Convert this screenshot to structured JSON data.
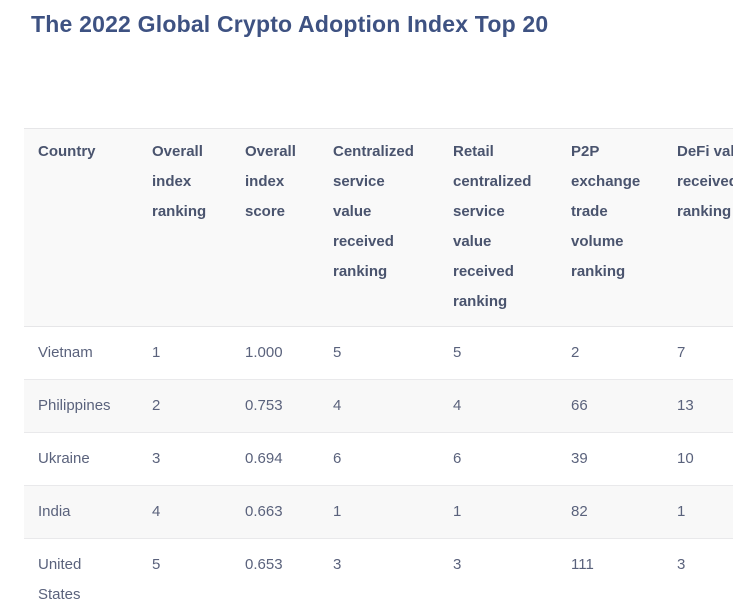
{
  "chart_data": {
    "type": "table",
    "title": "The 2022 Global Crypto Adoption Index Top 20",
    "columns": [
      "Country",
      "Overall index ranking",
      "Overall index score",
      "Centralized service value received ranking",
      "Retail centralized service value received ranking",
      "P2P exchange trade volume ranking",
      "DeFi value received ranking"
    ],
    "rows": [
      {
        "cells": [
          "Vietnam",
          "1",
          "1.000",
          "5",
          "5",
          "2",
          "7"
        ]
      },
      {
        "cells": [
          "Philippines",
          "2",
          "0.753",
          "4",
          "4",
          "66",
          "13"
        ]
      },
      {
        "cells": [
          "Ukraine",
          "3",
          "0.694",
          "6",
          "6",
          "39",
          "10"
        ]
      },
      {
        "cells": [
          "India",
          "4",
          "0.663",
          "1",
          "1",
          "82",
          "1"
        ]
      },
      {
        "cells": [
          "United States",
          "5",
          "0.653",
          "3",
          "3",
          "111",
          "3"
        ]
      }
    ],
    "layout": {
      "zebra_striping": true,
      "last_column_clipped_at_right_edge": true
    },
    "colors": {
      "title_text": "#3e5282",
      "header_text": "#4a546e",
      "body_text": "#5a627c",
      "row_border": "#e9e9eb",
      "stripe_bg": "#f8f8f8",
      "header_bg": "#f9f9f9"
    }
  }
}
